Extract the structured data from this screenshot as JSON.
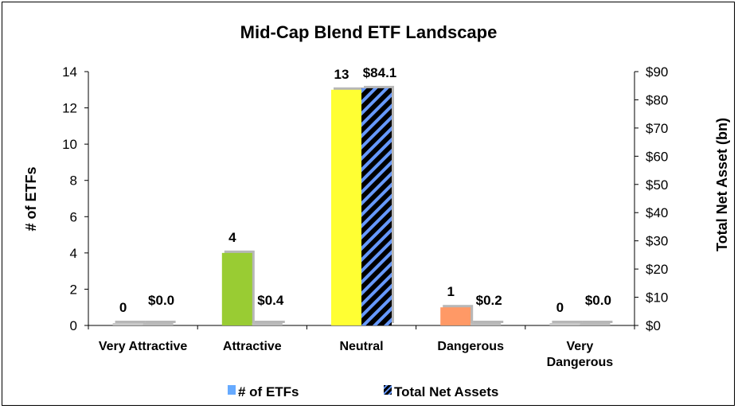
{
  "chart_data": {
    "type": "bar",
    "title": "Mid-Cap Blend ETF Landscape",
    "categories": [
      "Very Attractive",
      "Attractive",
      "Neutral",
      "Dangerous",
      "Very Dangerous"
    ],
    "category_lines": [
      [
        "Very Attractive"
      ],
      [
        "Attractive"
      ],
      [
        "Neutral"
      ],
      [
        "Dangerous"
      ],
      [
        "Very",
        "Dangerous"
      ]
    ],
    "series": [
      {
        "name": "# of ETFs",
        "axis": "left",
        "values": [
          0,
          4,
          13,
          1,
          0
        ],
        "labels": [
          "0",
          "4",
          "13",
          "1",
          "0"
        ],
        "colors": [
          "#c8c8c8",
          "#99cc33",
          "#ffff33",
          "#ff9966",
          "#c8c8c8"
        ]
      },
      {
        "name": "Total Net Assets",
        "axis": "right",
        "values": [
          0.0,
          0.4,
          84.1,
          0.2,
          0.0
        ],
        "labels": [
          "$0.0",
          "$0.4",
          "$84.1",
          "$0.2",
          "$0.0"
        ],
        "pattern": "diagonal-stripes",
        "colors": [
          "#000000",
          "#6699ff"
        ]
      }
    ],
    "ylabel": "# of ETFs",
    "ylim": [
      0,
      14
    ],
    "yticks": [
      "0",
      "2",
      "4",
      "6",
      "8",
      "10",
      "12",
      "14"
    ],
    "y2label": "Total Net Asset (bn)",
    "y2lim": [
      0,
      90
    ],
    "y2ticks": [
      "$0",
      "$10",
      "$20",
      "$30",
      "$40",
      "$50",
      "$60",
      "$70",
      "$80",
      "$90"
    ],
    "grid": false,
    "legend": "bottom",
    "legend_items": [
      "# of ETFs",
      "Total Net Assets"
    ]
  }
}
